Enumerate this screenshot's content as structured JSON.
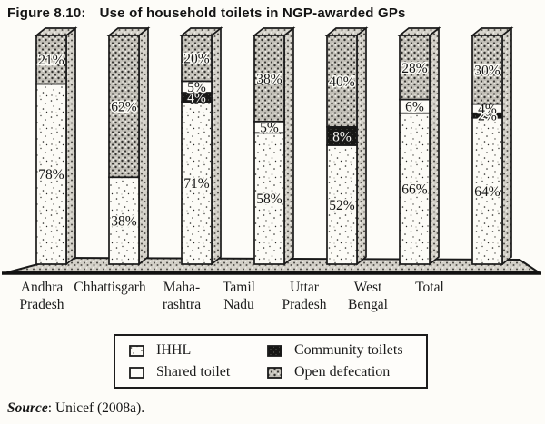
{
  "figure": {
    "label": "Figure 8.10:",
    "title": "Use of household toilets in NGP-awarded GPs"
  },
  "source": {
    "label": "Source",
    "text": ": Unicef (2008a)."
  },
  "legend": {
    "items": [
      {
        "key": "ihhl",
        "label": "IHHL"
      },
      {
        "key": "shared",
        "label": "Shared toilet"
      },
      {
        "key": "community",
        "label": "Community toilets"
      },
      {
        "key": "open",
        "label": "Open defecation"
      }
    ]
  },
  "palette": {
    "ink": "#1b1b1b",
    "paper": "#fdfcf8",
    "stipple_light": "#fcfbf6",
    "stipple_gray": "#c2bfb7",
    "black_fill": "#171715"
  },
  "chart_data": {
    "type": "bar",
    "subtype": "stacked-3d",
    "unit": "%",
    "title": "Use of household toilets in NGP-awarded GPs",
    "categories": [
      "Andhra Pradesh",
      "Chhattisgarh",
      "Maharashtra",
      "Tamil Nadu",
      "Uttar Pradesh",
      "West Bengal",
      "Total"
    ],
    "category_label_lines": [
      [
        "Andhra",
        "Pradesh"
      ],
      [
        "Chhattisgarh"
      ],
      [
        "Maha-",
        "rashtra"
      ],
      [
        "Tamil",
        "Nadu"
      ],
      [
        "Uttar",
        "Pradesh"
      ],
      [
        "West",
        "Bengal"
      ],
      [
        "Total"
      ]
    ],
    "stack_order_bottom_to_top": [
      "IHHL",
      "Community toilets",
      "Shared toilet",
      "Open defecation"
    ],
    "series": [
      {
        "name": "IHHL",
        "key": "ihhl",
        "values": [
          78,
          38,
          71,
          58,
          52,
          66,
          64
        ]
      },
      {
        "name": "Community toilets",
        "key": "community",
        "values": [
          0,
          0,
          4,
          0,
          8,
          0,
          2
        ]
      },
      {
        "name": "Shared toilet",
        "key": "shared",
        "values": [
          0,
          0,
          5,
          5,
          0,
          6,
          4
        ]
      },
      {
        "name": "Open defecation",
        "key": "open",
        "values": [
          21,
          62,
          20,
          38,
          40,
          28,
          30
        ]
      }
    ],
    "value_labels_shown": true,
    "axes": {
      "y_axis_hidden": true,
      "value_range": [
        0,
        100
      ]
    },
    "legend_position": "bottom-boxed"
  }
}
